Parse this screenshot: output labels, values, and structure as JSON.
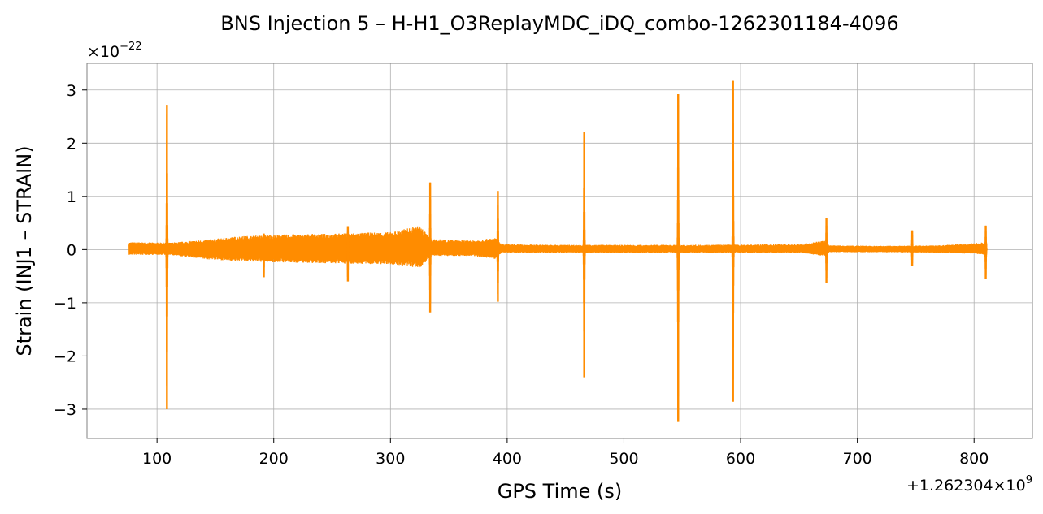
{
  "chart_data": {
    "type": "line",
    "title": "BNS Injection 5 – H-H1_O3ReplayMDC_iDQ_combo-1262301184-4096",
    "xlabel": "GPS Time (s)",
    "ylabel": "Strain (INJ1 – STRAIN)",
    "y_scale_label": "×10",
    "y_scale_exponent": "−22",
    "x_offset_label": "+1.262304×10",
    "x_offset_exponent": "9",
    "y_multiplier": 1e-22,
    "x_offset": 1262304000,
    "xlim": [
      40,
      850
    ],
    "ylim": [
      -3.55,
      3.5
    ],
    "grid": true,
    "legend": "none",
    "x_ticks": [
      100,
      200,
      300,
      400,
      500,
      600,
      700,
      800
    ],
    "x_tick_labels": [
      "100",
      "200",
      "300",
      "400",
      "500",
      "600",
      "700",
      "800"
    ],
    "y_ticks": [
      -3,
      -2,
      -1,
      0,
      1,
      2,
      3
    ],
    "y_tick_labels": [
      "−3",
      "−2",
      "−1",
      "0",
      "1",
      "2",
      "3"
    ],
    "series": [
      {
        "color": "#ff8c00",
        "time_range": [
          76,
          811
        ],
        "envelope": [
          {
            "x": 76,
            "upper": 0.14,
            "lower": -0.1
          },
          {
            "x": 110,
            "upper": 0.13,
            "lower": -0.1
          },
          {
            "x": 140,
            "upper": 0.18,
            "lower": -0.18
          },
          {
            "x": 170,
            "upper": 0.25,
            "lower": -0.22
          },
          {
            "x": 200,
            "upper": 0.28,
            "lower": -0.24
          },
          {
            "x": 250,
            "upper": 0.3,
            "lower": -0.26
          },
          {
            "x": 300,
            "upper": 0.33,
            "lower": -0.28
          },
          {
            "x": 325,
            "upper": 0.45,
            "lower": -0.35
          },
          {
            "x": 335,
            "upper": 0.2,
            "lower": -0.12
          },
          {
            "x": 370,
            "upper": 0.17,
            "lower": -0.12
          },
          {
            "x": 390,
            "upper": 0.22,
            "lower": -0.18
          },
          {
            "x": 395,
            "upper": 0.1,
            "lower": -0.06
          },
          {
            "x": 450,
            "upper": 0.09,
            "lower": -0.06
          },
          {
            "x": 550,
            "upper": 0.09,
            "lower": -0.06
          },
          {
            "x": 650,
            "upper": 0.1,
            "lower": -0.06
          },
          {
            "x": 672,
            "upper": 0.17,
            "lower": -0.12
          },
          {
            "x": 676,
            "upper": 0.08,
            "lower": -0.05
          },
          {
            "x": 720,
            "upper": 0.07,
            "lower": -0.05
          },
          {
            "x": 770,
            "upper": 0.08,
            "lower": -0.06
          },
          {
            "x": 800,
            "upper": 0.12,
            "lower": -0.08
          },
          {
            "x": 811,
            "upper": 0.14,
            "lower": -0.1
          }
        ],
        "spikes": [
          {
            "x": 108.5,
            "max": 2.72,
            "min": -3.0
          },
          {
            "x": 191.5,
            "max": 0.3,
            "min": -0.52
          },
          {
            "x": 263.5,
            "max": 0.44,
            "min": -0.6
          },
          {
            "x": 334,
            "max": 1.26,
            "min": -1.18
          },
          {
            "x": 392,
            "max": 1.1,
            "min": -0.98
          },
          {
            "x": 466,
            "max": 2.21,
            "min": -2.4
          },
          {
            "x": 546.5,
            "max": 2.92,
            "min": -3.24
          },
          {
            "x": 593.5,
            "max": 3.17,
            "min": -2.86
          },
          {
            "x": 673.5,
            "max": 0.6,
            "min": -0.62
          },
          {
            "x": 747,
            "max": 0.36,
            "min": -0.3
          },
          {
            "x": 810,
            "max": 0.45,
            "min": -0.56
          }
        ]
      }
    ]
  }
}
